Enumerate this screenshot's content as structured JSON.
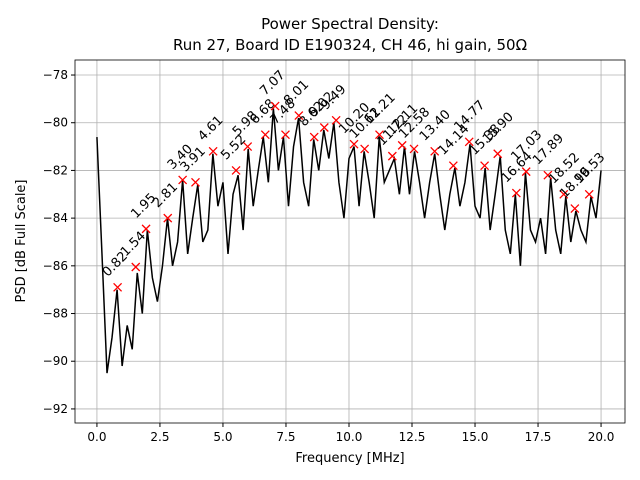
{
  "chart_data": {
    "type": "line",
    "title": "Power Spectral Density:",
    "subtitle": "Run 27, Board ID E190324, CH 46, hi gain, 50Ω",
    "xlabel": "Frequency [MHz]",
    "ylabel": "PSD [dB Full Scale]",
    "xlim": [
      -0.87,
      20.95
    ],
    "ylim": [
      -92.59,
      -77.37
    ],
    "xticks": [
      {
        "value": 0,
        "label": "0.0"
      },
      2.5,
      {
        "value": 5,
        "label": "5.0"
      },
      7.5,
      {
        "value": 10,
        "label": "10.0"
      },
      12.5,
      {
        "value": 15,
        "label": "15.0"
      },
      17.5,
      {
        "value": 20,
        "label": "20.0"
      }
    ],
    "yticks": [
      {
        "value": -92,
        "label": "−92"
      },
      {
        "value": -90,
        "label": "−90"
      },
      {
        "value": -88,
        "label": "−88"
      },
      {
        "value": -86,
        "label": "−86"
      },
      {
        "value": -84,
        "label": "−84"
      },
      {
        "value": -82,
        "label": "−82"
      },
      {
        "value": -80,
        "label": "−80"
      },
      {
        "value": -78,
        "label": "−78"
      }
    ],
    "grid": true,
    "series": [
      {
        "color": "#000000",
        "x": [
          0,
          0.2,
          0.4,
          0.6,
          0.8,
          1,
          1.2,
          1.4,
          1.6,
          1.8,
          2,
          2.2,
          2.4,
          2.6,
          2.8,
          3,
          3.2,
          3.4,
          3.6,
          3.8,
          4,
          4.2,
          4.4,
          4.6,
          4.8,
          5,
          5.2,
          5.4,
          5.6,
          5.8,
          6,
          6.2,
          6.4,
          6.6,
          6.8,
          7,
          7.2,
          7.4,
          7.6,
          7.8,
          8,
          8.2,
          8.4,
          8.6,
          8.8,
          9,
          9.2,
          9.4,
          9.6,
          9.8,
          10,
          10.2,
          10.4,
          10.6,
          10.8,
          11,
          11.2,
          11.4,
          11.6,
          11.8,
          12,
          12.2,
          12.4,
          12.6,
          12.8,
          13,
          13.2,
          13.4,
          13.6,
          13.8,
          14,
          14.2,
          14.4,
          14.6,
          14.8,
          15,
          15.2,
          15.4,
          15.6,
          15.8,
          16,
          16.2,
          16.4,
          16.6,
          16.8,
          17,
          17.2,
          17.4,
          17.6,
          17.8,
          18,
          18.2,
          18.4,
          18.6,
          18.8,
          19,
          19.2,
          19.4,
          19.6,
          19.8,
          20
        ],
        "values": [
          -80.6,
          -85.5,
          -90.5,
          -89.0,
          -87.0,
          -90.2,
          -88.5,
          -89.5,
          -86.3,
          -88.0,
          -84.5,
          -86.5,
          -87.5,
          -86.0,
          -84.0,
          -86.0,
          -85.0,
          -82.4,
          -85.5,
          -84.0,
          -82.6,
          -85.0,
          -84.5,
          -81.3,
          -83.5,
          -82.5,
          -85.5,
          -83.0,
          -82.2,
          -84.5,
          -81.1,
          -83.5,
          -82.0,
          -80.6,
          -82.5,
          -79.4,
          -82.0,
          -80.6,
          -83.5,
          -81.0,
          -79.8,
          -82.5,
          -83.5,
          -80.7,
          -82.0,
          -80.3,
          -81.5,
          -80.0,
          -82.5,
          -84.0,
          -81.5,
          -81.0,
          -83.5,
          -81.2,
          -82.5,
          -84.0,
          -80.6,
          -82.5,
          -82.0,
          -81.5,
          -83.0,
          -81.0,
          -83.0,
          -81.2,
          -82.5,
          -84.0,
          -82.5,
          -81.3,
          -83.0,
          -84.5,
          -83.0,
          -81.9,
          -83.5,
          -82.5,
          -80.9,
          -83.5,
          -84.0,
          -81.9,
          -84.5,
          -83.0,
          -81.4,
          -84.5,
          -85.5,
          -83.0,
          -86.0,
          -82.1,
          -84.5,
          -85.0,
          -84.0,
          -85.5,
          -82.3,
          -84.5,
          -85.5,
          -83.1,
          -85.0,
          -83.7,
          -84.5,
          -85.0,
          -83.1,
          -84.0,
          -82.0
        ]
      },
      {
        "color": "#ff0000",
        "marker": "x",
        "x": [
          0.82,
          1.54,
          1.95,
          2.81,
          3.4,
          3.91,
          4.61,
          5.52,
          5.98,
          6.68,
          7.07,
          7.48,
          8.01,
          8.62,
          9.02,
          9.49,
          10.2,
          10.62,
          11.21,
          11.72,
          12.11,
          12.58,
          13.4,
          14.14,
          14.77,
          15.38,
          15.9,
          16.64,
          17.03,
          17.89,
          18.52,
          18.96,
          19.53
        ],
        "values": [
          -86.9,
          -86.05,
          -84.45,
          -84.0,
          -82.4,
          -82.5,
          -81.2,
          -82.0,
          -81.0,
          -80.5,
          -79.3,
          -80.5,
          -79.7,
          -80.6,
          -80.2,
          -79.9,
          -80.9,
          -81.1,
          -80.5,
          -81.4,
          -80.95,
          -81.1,
          -81.2,
          -81.8,
          -80.8,
          -81.8,
          -81.3,
          -82.95,
          -82.05,
          -82.2,
          -83.0,
          -83.6,
          -83.0
        ],
        "value_labels": [
          "0.82",
          "1.54",
          "1.95",
          "2.81",
          "3.40",
          "3.91",
          "4.61",
          "5.52",
          "5.98",
          "6.68",
          "7.07",
          "7.48",
          "8.01",
          "8.62",
          "9.02",
          "9.49",
          "10.20",
          "10.62",
          "11.21",
          "11.72",
          "12.11",
          "12.58",
          "13.40",
          "14.14",
          "14.77",
          "15.38",
          "15.90",
          "16.64",
          "17.03",
          "17.89",
          "18.52",
          "18.96",
          "19.53"
        ]
      }
    ]
  }
}
